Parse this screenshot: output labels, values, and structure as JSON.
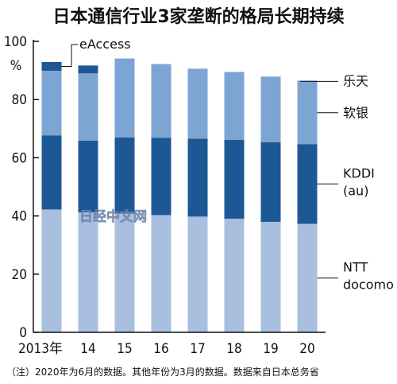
{
  "chart_data": {
    "type": "bar",
    "stacked": true,
    "title": "日本通信行业3家垄断的格局长期持续",
    "y_unit": "%",
    "ylim": [
      0,
      100
    ],
    "y_ticks": [
      "0",
      "20",
      "40",
      "60",
      "80",
      "100"
    ],
    "categories": [
      "2013年",
      "14",
      "15",
      "16",
      "17",
      "18",
      "19",
      "20"
    ],
    "series": [
      {
        "name": "NTT docomo",
        "label_lines": [
          "NTT",
          "docomo"
        ],
        "color": "#a9bfe0",
        "values": [
          42.2,
          41.2,
          40.8,
          40.3,
          39.8,
          39.0,
          38.0,
          37.3
        ]
      },
      {
        "name": "KDDI (au)",
        "label_lines": [
          "KDDI",
          "(au)"
        ],
        "color": "#1d5896",
        "values": [
          25.5,
          24.7,
          26.2,
          26.6,
          26.8,
          27.2,
          27.4,
          27.4
        ]
      },
      {
        "name": "软银",
        "label_lines": [
          "软银"
        ],
        "color": "#7ca5d3",
        "values": [
          22.2,
          23.1,
          27.1,
          25.3,
          24.0,
          23.3,
          22.5,
          21.6
        ]
      },
      {
        "name": "乐天",
        "label_lines": [
          "乐天"
        ],
        "color": "#7ca5d3",
        "values": [
          0,
          0,
          0,
          0,
          0,
          0,
          0,
          0.2
        ]
      },
      {
        "name": "eAccess",
        "label_lines": [
          "eAccess"
        ],
        "color": "#1d5896",
        "values": [
          3.0,
          2.7,
          0,
          0,
          0,
          0,
          0,
          0
        ]
      }
    ],
    "grid": false,
    "legend": "right, labels beside last bar"
  },
  "watermark": "日经中文网",
  "footnote": "（注）2020年为6月的数据。其他年份为3月的数据。数据来自日本总务省"
}
